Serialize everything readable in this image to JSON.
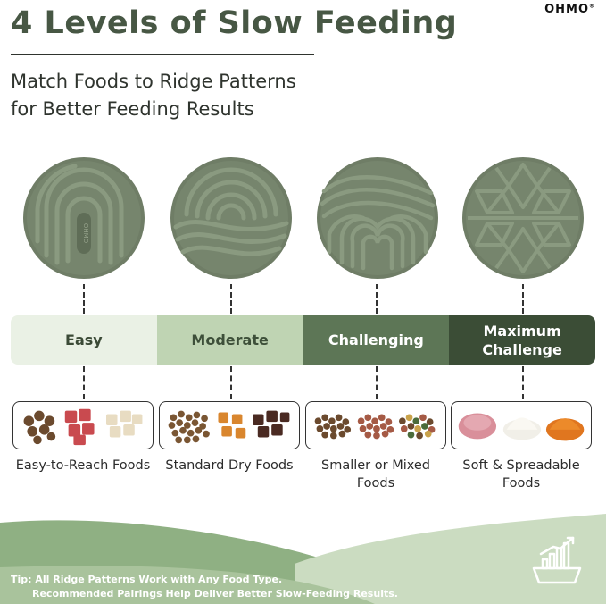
{
  "header": {
    "title": "4 Levels of Slow Feeding",
    "brand": "OHMO",
    "subtitle_line1": "Match Foods to Ridge Patterns",
    "subtitle_line2": "for Better Feeding Results"
  },
  "levels": [
    {
      "label": "Easy",
      "food": "Easy-to-Reach Foods"
    },
    {
      "label": "Moderate",
      "food": "Standard Dry Foods"
    },
    {
      "label": "Challenging",
      "food": "Smaller or Mixed Foods"
    },
    {
      "label_line1": "Maximum",
      "label_line2": "Challenge",
      "food": "Soft & Spreadable Foods"
    }
  ],
  "pad_label": "OHMO",
  "footer": {
    "tip_line1": "Tip: All Ridge Patterns Work with Any Food Type.",
    "tip_line2": "Recommended Pairings Help Deliver Better Slow-Feeding Results."
  },
  "colors": {
    "mat_green": "#6f7d66",
    "ridge_green": "#7f8e76",
    "easy": "#eaf1e5",
    "moderate": "#bfd4b3",
    "challenging": "#5d7656",
    "maximum": "#3b4d36",
    "footer_green": "#a9c39c"
  }
}
